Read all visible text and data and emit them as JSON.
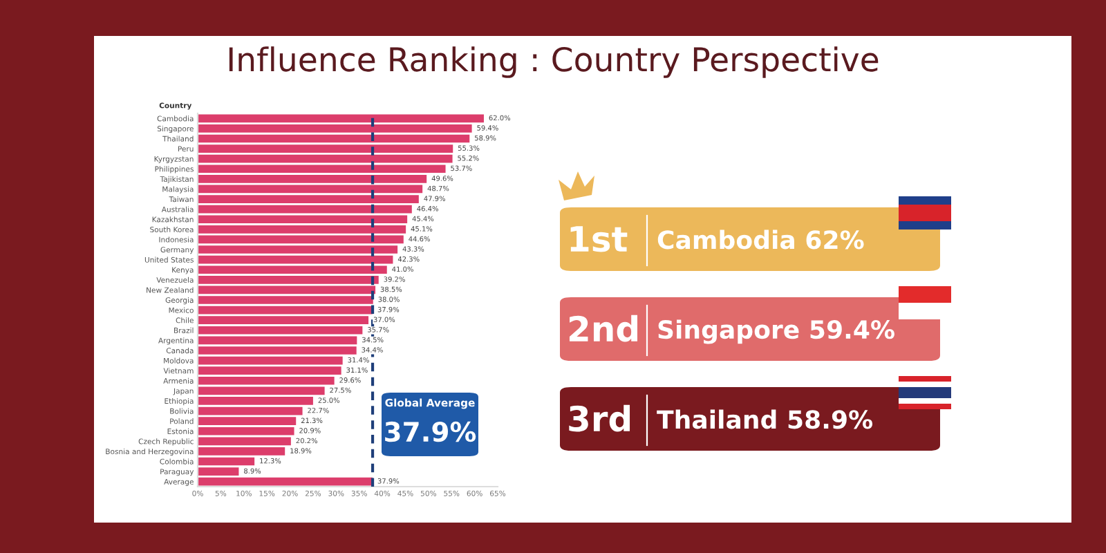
{
  "chart_data": [
    {
      "type": "bar",
      "orientation": "horizontal",
      "title": "Influence Ranking : Country Perspective",
      "ylabel": "Country",
      "categories": [
        "Cambodia",
        "Singapore",
        "Thailand",
        "Peru",
        "Kyrgyzstan",
        "Philippines",
        "Tajikistan",
        "Malaysia",
        "Taiwan",
        "Australia",
        "Kazakhstan",
        "South Korea",
        "Indonesia",
        "Germany",
        "United States",
        "Kenya",
        "Venezuela",
        "New Zealand",
        "Georgia",
        "Mexico",
        "Chile",
        "Brazil",
        "Argentina",
        "Canada",
        "Moldova",
        "Vietnam",
        "Armenia",
        "Japan",
        "Ethiopia",
        "Bolivia",
        "Poland",
        "Estonia",
        "Czech Republic",
        "Bosnia and Herzegovina",
        "Colombia",
        "Paraguay",
        "Average"
      ],
      "values": [
        62.0,
        59.4,
        58.9,
        55.3,
        55.2,
        53.7,
        49.6,
        48.7,
        47.9,
        46.4,
        45.4,
        45.1,
        44.6,
        43.3,
        42.3,
        41.0,
        39.2,
        38.5,
        38.0,
        37.9,
        37.0,
        35.7,
        34.5,
        34.4,
        31.4,
        31.1,
        29.6,
        27.5,
        25.0,
        22.7,
        21.3,
        20.9,
        20.2,
        18.9,
        12.3,
        8.9,
        37.9
      ],
      "value_labels": [
        "62.0%",
        "59.4%",
        "58.9%",
        "55.3%",
        "55.2%",
        "53.7%",
        "49.6%",
        "48.7%",
        "47.9%",
        "46.4%",
        "45.4%",
        "45.1%",
        "44.6%",
        "43.3%",
        "42.3%",
        "41.0%",
        "39.2%",
        "38.5%",
        "38.0%",
        "37.9%",
        "37.0%",
        "35.7%",
        "34.5%",
        "34.4%",
        "31.4%",
        "31.1%",
        "29.6%",
        "27.5%",
        "25.0%",
        "22.7%",
        "21.3%",
        "20.9%",
        "20.2%",
        "18.9%",
        "12.3%",
        "8.9%",
        "37.9%"
      ],
      "color": "#dc3d6b",
      "xlim": [
        0,
        65
      ],
      "xticks": [
        {
          "value": 0,
          "label": "0%"
        },
        {
          "value": 5,
          "label": "5%"
        },
        {
          "value": 10,
          "label": "10%"
        },
        {
          "value": 15,
          "label": "15%"
        },
        {
          "value": 20,
          "label": "20%"
        },
        {
          "value": 25,
          "label": "25%"
        },
        {
          "value": 30,
          "label": "30%"
        },
        {
          "value": 35,
          "label": "35%"
        },
        {
          "value": 40,
          "label": "40%"
        },
        {
          "value": 45,
          "label": "45%"
        },
        {
          "value": 50,
          "label": "50%"
        },
        {
          "value": 55,
          "label": "55%"
        },
        {
          "value": 60,
          "label": "60%"
        },
        {
          "value": 65,
          "label": "65%"
        }
      ],
      "ref_lines": [
        {
          "axis": "x",
          "value": 37.9,
          "label": "Global Average",
          "color": "#1f3f7a",
          "line_style": "dashed"
        }
      ],
      "annotations": [
        "37.9%"
      ]
    },
    {
      "type": "other",
      "annotations": [
        "1st",
        "Cambodia 62%",
        "2nd",
        "Singapore 59.4%",
        "3rd",
        "Thailand 58.9%"
      ],
      "colors": [
        "#ecb85a",
        "#e06b6b",
        "#7a1a1f"
      ]
    }
  ]
}
